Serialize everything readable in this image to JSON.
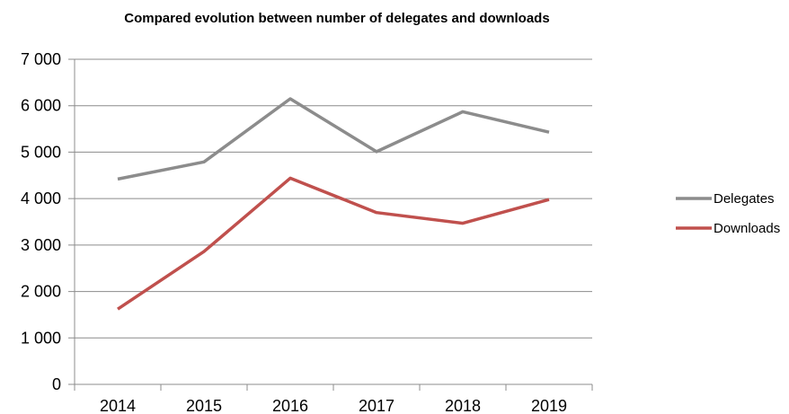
{
  "chart_data": {
    "type": "line",
    "title": "Compared evolution between number of delegates and downloads",
    "xlabel": "",
    "ylabel": "",
    "categories": [
      "2014",
      "2015",
      "2016",
      "2017",
      "2018",
      "2019"
    ],
    "ylim": [
      0,
      7000
    ],
    "yticks": [
      0,
      1000,
      2000,
      3000,
      4000,
      5000,
      6000,
      7000
    ],
    "ytick_labels": [
      "0",
      "1 000",
      "2 000",
      "3 000",
      "4 000",
      "5 000",
      "6 000",
      "7 000"
    ],
    "grid": true,
    "legend_position": "right",
    "series": [
      {
        "name": "Delegates",
        "color": "#8c8c8c",
        "values": [
          4420,
          4790,
          6150,
          5010,
          5870,
          5430
        ]
      },
      {
        "name": "Downloads",
        "color": "#c0504d",
        "values": [
          1620,
          2860,
          4440,
          3700,
          3470,
          3980
        ]
      }
    ]
  }
}
